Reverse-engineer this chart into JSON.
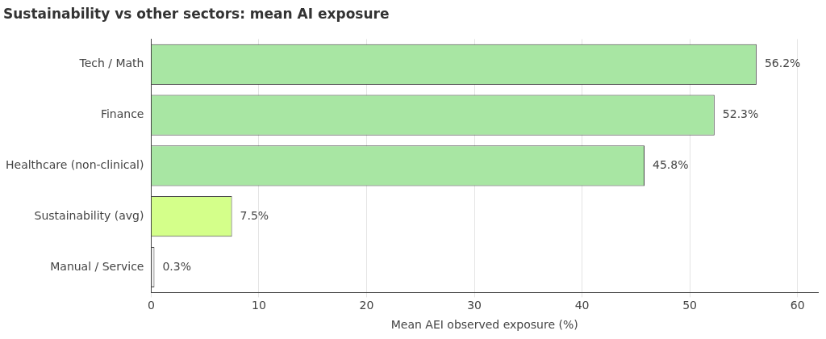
{
  "chart_data": {
    "type": "bar",
    "orientation": "horizontal",
    "title": "Sustainability vs other sectors: mean AI exposure",
    "xlabel": "Mean AEI observed exposure (%)",
    "categories": [
      "Tech / Math",
      "Finance",
      "Healthcare (non-clinical)",
      "Sustainability (avg)",
      "Manual / Service"
    ],
    "values": [
      56.2,
      52.3,
      45.8,
      7.5,
      0.3
    ],
    "colors": [
      "#a8e6a3",
      "#a8e6a3",
      "#a8e6a3",
      "#d4ff8a",
      "#eeeeee"
    ],
    "value_labels": [
      "56.2%",
      "52.3%",
      "45.8%",
      "7.5%",
      "0.3%"
    ],
    "xlim": [
      0,
      61.9
    ],
    "xticks": [
      0,
      10,
      20,
      30,
      40,
      50,
      60
    ],
    "grid": "x",
    "legend": false
  }
}
